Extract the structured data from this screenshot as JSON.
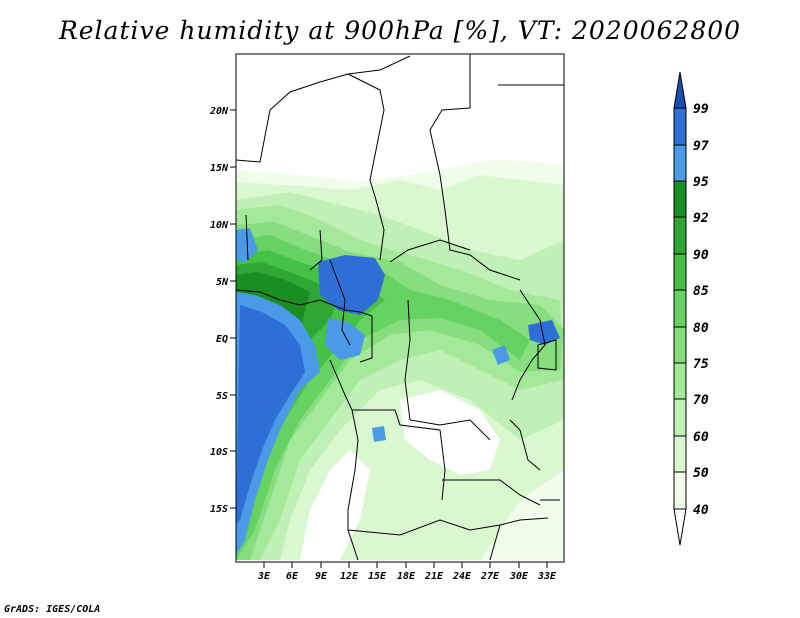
{
  "title": "Relative humidity at 900hPa [%], VT: 2020062800",
  "footer": "GrADS: IGES/COLA",
  "map": {
    "lat_labels": [
      "20N",
      "15N",
      "10N",
      "5N",
      "EQ",
      "5S",
      "10S",
      "15S"
    ],
    "lon_labels": [
      "3E",
      "6E",
      "9E",
      "12E",
      "15E",
      "18E",
      "21E",
      "24E",
      "27E",
      "30E",
      "33E"
    ]
  },
  "colorbar": {
    "levels": [
      "40",
      "50",
      "60",
      "70",
      "75",
      "80",
      "85",
      "90",
      "92",
      "95",
      "97",
      "99"
    ],
    "colors": {
      "lt40": "#ffffff",
      "40_50": "#f0fdeb",
      "50_60": "#d9f8d0",
      "60_70": "#c0f0b5",
      "70_75": "#a4e89a",
      "75_80": "#86de7e",
      "80_85": "#66d262",
      "85_90": "#46c148",
      "90_92": "#2ea832",
      "92_95": "#1a8e22",
      "95_97": "#4b9ae8",
      "97_99": "#2e6fd6",
      "gt99": "#1a4fb0"
    }
  }
}
